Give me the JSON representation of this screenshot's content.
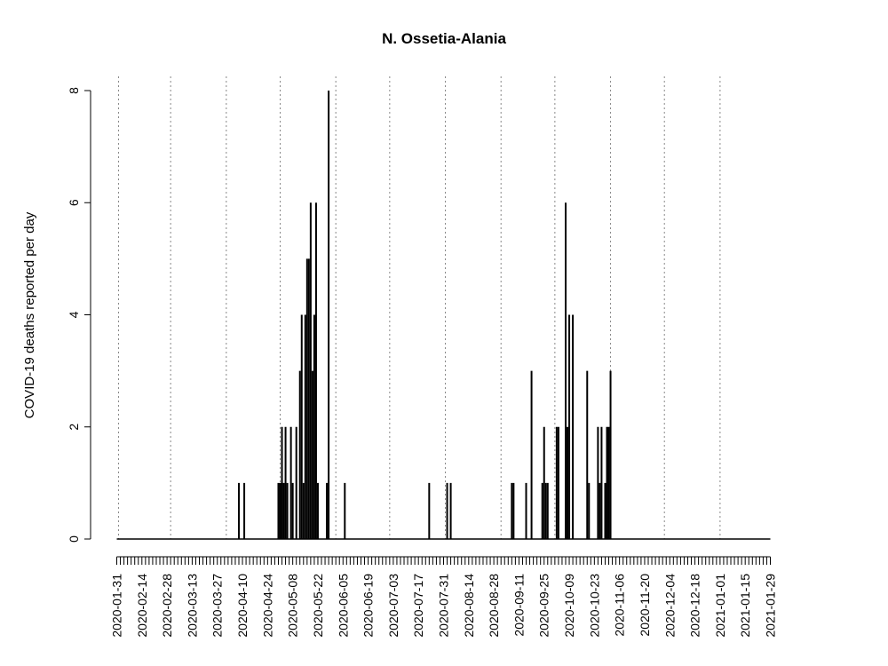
{
  "chart_data": {
    "type": "bar",
    "title": "N. Ossetia-Alania",
    "xlabel": "",
    "ylabel": "COVID-19 deaths reported per day",
    "x_range": [
      "2020-01-31",
      "2021-01-29"
    ],
    "ylim": [
      0,
      8
    ],
    "y_ticks": [
      0,
      2,
      4,
      6,
      8
    ],
    "x_tick_labels": [
      "2020-01-31",
      "2020-02-14",
      "2020-02-28",
      "2020-03-13",
      "2020-03-27",
      "2020-04-10",
      "2020-04-24",
      "2020-05-08",
      "2020-05-22",
      "2020-06-05",
      "2020-06-19",
      "2020-07-03",
      "2020-07-17",
      "2020-07-31",
      "2020-08-14",
      "2020-08-28",
      "2020-09-11",
      "2020-09-25",
      "2020-10-09",
      "2020-10-23",
      "2020-11-06",
      "2020-11-20",
      "2020-12-04",
      "2020-12-18",
      "2021-01-01",
      "2021-01-15",
      "2021-01-29"
    ],
    "month_gridlines": [
      "2020-02-01",
      "2020-03-01",
      "2020-04-01",
      "2020-05-01",
      "2020-06-01",
      "2020-07-01",
      "2020-08-01",
      "2020-09-01",
      "2020-10-01",
      "2020-11-01",
      "2020-12-01",
      "2021-01-01"
    ],
    "grid": "vertical dotted lines at month starts",
    "series": [
      {
        "name": "deaths",
        "points": [
          {
            "date": "2020-04-08",
            "value": 1
          },
          {
            "date": "2020-04-11",
            "value": 1
          },
          {
            "date": "2020-04-30",
            "value": 1
          },
          {
            "date": "2020-05-01",
            "value": 1
          },
          {
            "date": "2020-05-02",
            "value": 2
          },
          {
            "date": "2020-05-03",
            "value": 1
          },
          {
            "date": "2020-05-04",
            "value": 2
          },
          {
            "date": "2020-05-05",
            "value": 1
          },
          {
            "date": "2020-05-07",
            "value": 2
          },
          {
            "date": "2020-05-08",
            "value": 1
          },
          {
            "date": "2020-05-10",
            "value": 2
          },
          {
            "date": "2020-05-12",
            "value": 3
          },
          {
            "date": "2020-05-13",
            "value": 4
          },
          {
            "date": "2020-05-14",
            "value": 1
          },
          {
            "date": "2020-05-15",
            "value": 4
          },
          {
            "date": "2020-05-16",
            "value": 5
          },
          {
            "date": "2020-05-17",
            "value": 5
          },
          {
            "date": "2020-05-18",
            "value": 6
          },
          {
            "date": "2020-05-19",
            "value": 3
          },
          {
            "date": "2020-05-20",
            "value": 4
          },
          {
            "date": "2020-05-21",
            "value": 6
          },
          {
            "date": "2020-05-22",
            "value": 1
          },
          {
            "date": "2020-05-27",
            "value": 1
          },
          {
            "date": "2020-05-28",
            "value": 8
          },
          {
            "date": "2020-06-06",
            "value": 1
          },
          {
            "date": "2020-07-23",
            "value": 1
          },
          {
            "date": "2020-08-02",
            "value": 1
          },
          {
            "date": "2020-08-04",
            "value": 1
          },
          {
            "date": "2020-09-07",
            "value": 1
          },
          {
            "date": "2020-09-08",
            "value": 1
          },
          {
            "date": "2020-09-15",
            "value": 1
          },
          {
            "date": "2020-09-18",
            "value": 3
          },
          {
            "date": "2020-09-24",
            "value": 1
          },
          {
            "date": "2020-09-25",
            "value": 2
          },
          {
            "date": "2020-09-26",
            "value": 1
          },
          {
            "date": "2020-09-27",
            "value": 1
          },
          {
            "date": "2020-10-02",
            "value": 2
          },
          {
            "date": "2020-10-03",
            "value": 2
          },
          {
            "date": "2020-10-07",
            "value": 6
          },
          {
            "date": "2020-10-08",
            "value": 2
          },
          {
            "date": "2020-10-09",
            "value": 4
          },
          {
            "date": "2020-10-11",
            "value": 4
          },
          {
            "date": "2020-10-19",
            "value": 3
          },
          {
            "date": "2020-10-20",
            "value": 1
          },
          {
            "date": "2020-10-25",
            "value": 2
          },
          {
            "date": "2020-10-26",
            "value": 1
          },
          {
            "date": "2020-10-27",
            "value": 2
          },
          {
            "date": "2020-10-29",
            "value": 1
          },
          {
            "date": "2020-10-30",
            "value": 2
          },
          {
            "date": "2020-10-31",
            "value": 2
          },
          {
            "date": "2020-11-01",
            "value": 3
          }
        ]
      }
    ]
  }
}
